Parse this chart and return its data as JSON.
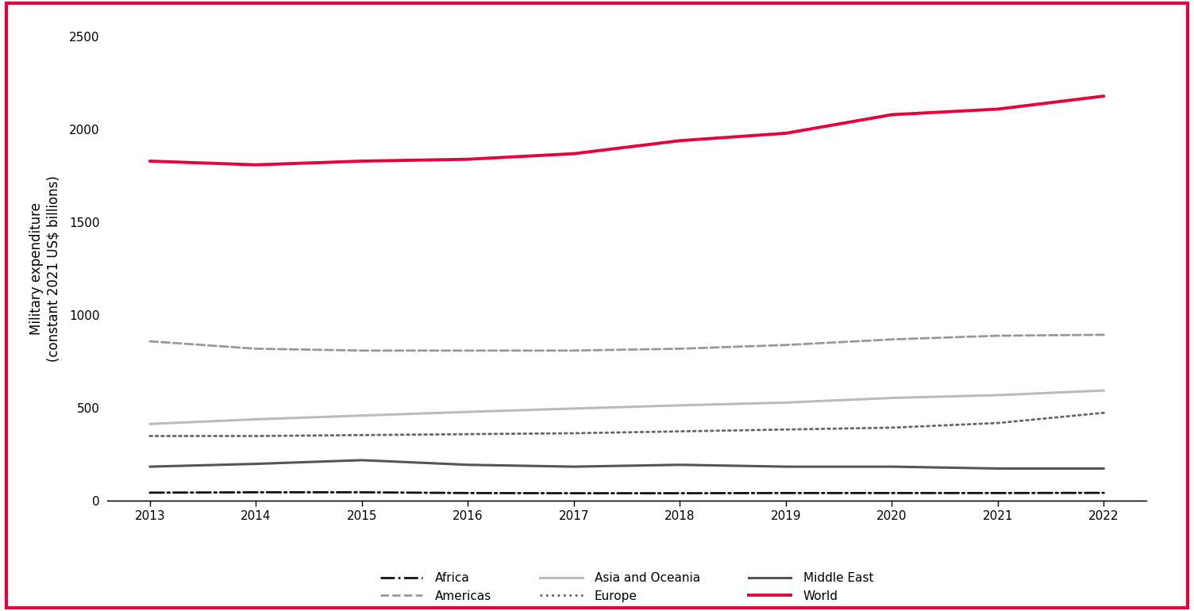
{
  "years": [
    2013,
    2014,
    2015,
    2016,
    2017,
    2018,
    2019,
    2020,
    2021,
    2022
  ],
  "series": {
    "Africa": [
      45,
      47,
      47,
      43,
      42,
      42,
      43,
      43,
      43,
      44
    ],
    "Americas": [
      860,
      820,
      810,
      810,
      810,
      820,
      840,
      870,
      890,
      895
    ],
    "Asia and Oceania": [
      415,
      440,
      460,
      480,
      498,
      515,
      530,
      555,
      570,
      595
    ],
    "Europe": [
      350,
      350,
      355,
      360,
      365,
      375,
      385,
      395,
      420,
      475
    ],
    "Middle East": [
      185,
      200,
      220,
      195,
      185,
      195,
      185,
      185,
      175,
      175
    ],
    "World": [
      1830,
      1810,
      1830,
      1840,
      1870,
      1940,
      1980,
      2080,
      2110,
      2180
    ]
  },
  "line_styles": {
    "Africa": {
      "color": "#111111",
      "linestyle": "-.",
      "linewidth": 2.0
    },
    "Americas": {
      "color": "#999999",
      "linestyle": "--",
      "linewidth": 2.0
    },
    "Asia and Oceania": {
      "color": "#bbbbbb",
      "linestyle": "-",
      "linewidth": 2.2
    },
    "Europe": {
      "color": "#666666",
      "linestyle": ":",
      "linewidth": 2.0
    },
    "Middle East": {
      "color": "#555555",
      "linestyle": "-",
      "linewidth": 2.2
    },
    "World": {
      "color": "#e8003d",
      "linestyle": "-",
      "linewidth": 2.8
    }
  },
  "ylabel": "Military expenditure\n(constant 2021 US$ billions)",
  "ylim": [
    0,
    2500
  ],
  "yticks": [
    0,
    500,
    1000,
    1500,
    2000,
    2500
  ],
  "ytick_labels": [
    "0",
    "500",
    "1000",
    "1500",
    "2000",
    "2500"
  ],
  "xlim": [
    2012.6,
    2022.4
  ],
  "background_color": "#ffffff",
  "border_color": "#e8003d",
  "legend_order": [
    "Africa",
    "Americas",
    "Asia and Oceania",
    "Europe",
    "Middle East",
    "World"
  ]
}
